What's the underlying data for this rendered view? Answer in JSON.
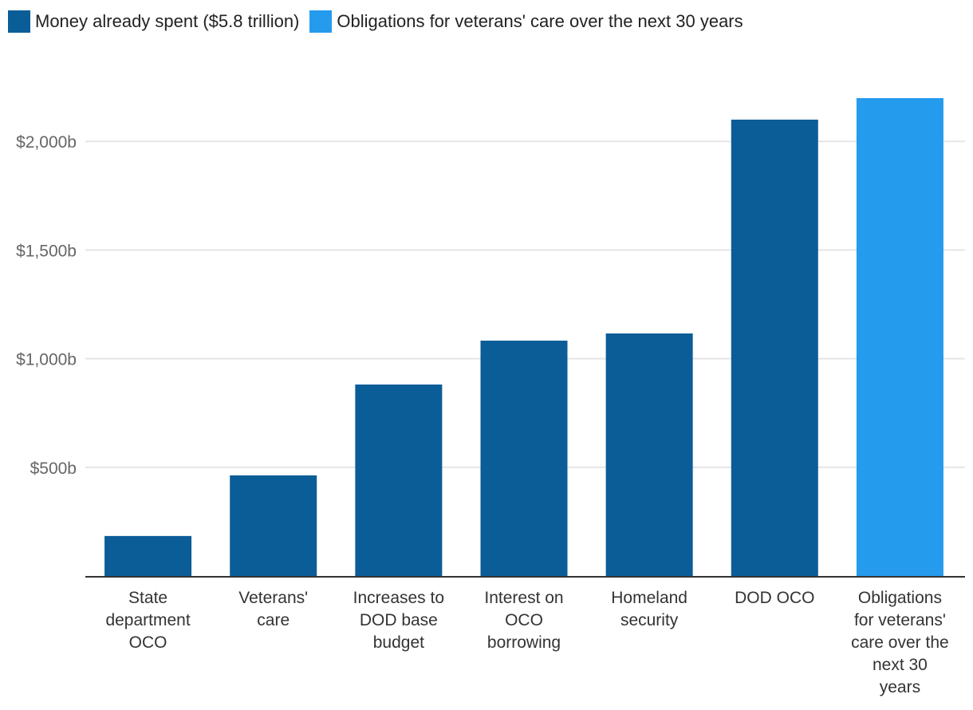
{
  "chart_data": {
    "type": "bar",
    "title": "",
    "xlabel": "",
    "ylabel": "",
    "ylim": [
      0,
      2300
    ],
    "yticks": [
      500,
      1000,
      1500,
      2000
    ],
    "ytick_labels": [
      "$500b",
      "$1,000b",
      "$1,500b",
      "$2,000b"
    ],
    "grid": true,
    "legend_position": "top-left",
    "categories": [
      [
        "State",
        "department",
        "OCO"
      ],
      [
        "Veterans'",
        "care"
      ],
      [
        "Increases to",
        "DOD base",
        "budget"
      ],
      [
        "Interest on",
        "OCO",
        "borrowing"
      ],
      [
        "Homeland",
        "security"
      ],
      [
        "DOD OCO"
      ],
      [
        "Obligations",
        "for veterans'",
        "care over the",
        "next 30",
        "years"
      ]
    ],
    "series": [
      {
        "name": "Money already spent ($5.8 trillion)",
        "color": "#0b5d98",
        "values": [
          184,
          463,
          881,
          1083,
          1116,
          2100,
          null
        ]
      },
      {
        "name": "Obligations for veterans' care over the next 30 years",
        "color": "#259bee",
        "values": [
          null,
          null,
          null,
          null,
          null,
          null,
          2199
        ]
      }
    ],
    "units": "billions of dollars"
  },
  "legend": {
    "items": [
      {
        "label": "Money already spent ($5.8 trillion)",
        "color": "#0b5d98"
      },
      {
        "label": "Obligations for veterans' care over the next 30 years",
        "color": "#259bee"
      }
    ]
  }
}
